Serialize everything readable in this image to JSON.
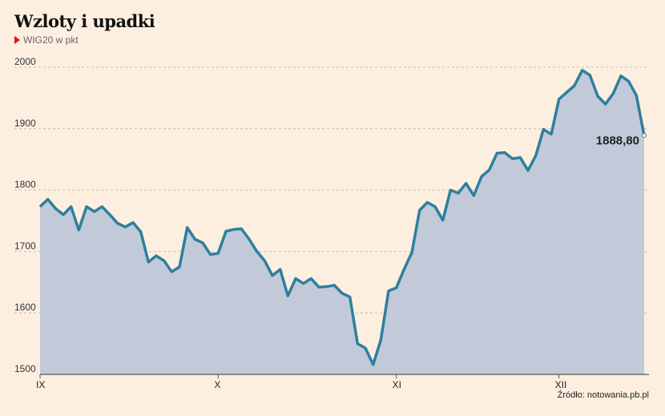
{
  "title": "Wzloty i upadki",
  "subtitle": "WIG20 w pkt",
  "source": "Źródło: notowania.pb.pl",
  "colors": {
    "background": "#fdefe0",
    "line": "#2e7f9e",
    "area": "#c2c9d9",
    "grid": "#b7b0a8",
    "marker": "#e3120b"
  },
  "chart_data": {
    "type": "area",
    "title": "Wzloty i upadki",
    "subtitle": "WIG20 w pkt",
    "ylim": [
      1500,
      2000
    ],
    "yticks": [
      "1500",
      "1600",
      "1700",
      "1800",
      "1900",
      "2000"
    ],
    "xticks": [
      {
        "label": "IX",
        "index": 0
      },
      {
        "label": "X",
        "index": 23
      },
      {
        "label": "XI",
        "index": 46
      },
      {
        "label": "XII",
        "index": 67
      }
    ],
    "last_value_label": "1888,80",
    "grid": true,
    "series": [
      {
        "values": [
          1773,
          1785,
          1770,
          1760,
          1773,
          1735,
          1773,
          1765,
          1773,
          1760,
          1746,
          1740,
          1747,
          1732,
          1683,
          1693,
          1685,
          1667,
          1675,
          1739,
          1720,
          1714,
          1695,
          1697,
          1733,
          1736,
          1737,
          1720,
          1700,
          1685,
          1661,
          1671,
          1628,
          1656,
          1648,
          1656,
          1642,
          1643,
          1645,
          1632,
          1626,
          1550,
          1543,
          1516,
          1556,
          1636,
          1641,
          1671,
          1698,
          1767,
          1780,
          1773,
          1751,
          1800,
          1795,
          1811,
          1791,
          1822,
          1833,
          1860,
          1861,
          1851,
          1853,
          1832,
          1856,
          1899,
          1891,
          1948,
          1959,
          1970,
          1995,
          1987,
          1953,
          1940,
          1957,
          1986,
          1977,
          1954,
          1888.8
        ]
      }
    ]
  }
}
